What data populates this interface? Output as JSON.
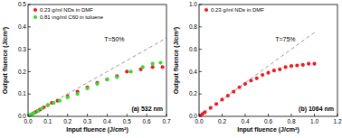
{
  "chart_data": [
    {
      "type": "scatter",
      "xlabel": "Input fluence (J/cm²)",
      "ylabel": "Output fluence (J/cm²)",
      "annotations": [
        "T=50%",
        "(a) 532 nm"
      ],
      "xlim": [
        0,
        0.7
      ],
      "ylim": [
        0,
        0.5
      ],
      "xticks": [
        {
          "value": 0,
          "label": "0.0"
        },
        0.1,
        0.2,
        0.3,
        0.4,
        0.5,
        0.6,
        0.7
      ],
      "yticks": [
        {
          "value": 0,
          "label": "0.0"
        },
        0.1,
        0.2,
        0.3,
        0.4,
        0.5
      ],
      "grid": false,
      "legend": "upper left",
      "series": [
        {
          "name": "0.23 g/ml NDs in DMF",
          "color": "#ee1c25",
          "marker": "circle",
          "x": [
            0.01,
            0.02,
            0.03,
            0.04,
            0.05,
            0.06,
            0.08,
            0.1,
            0.12,
            0.15,
            0.2,
            0.25,
            0.3,
            0.35,
            0.4,
            0.45,
            0.5,
            0.57,
            0.63,
            0.68
          ],
          "values": [
            0.005,
            0.01,
            0.015,
            0.02,
            0.025,
            0.03,
            0.04,
            0.05,
            0.06,
            0.07,
            0.09,
            0.11,
            0.13,
            0.15,
            0.165,
            0.18,
            0.2,
            0.21,
            0.22,
            0.22
          ]
        },
        {
          "name": "0.81 mg/ml C60 in toluene",
          "color": "#33dd33",
          "marker": "circle",
          "x": [
            0.01,
            0.02,
            0.03,
            0.05,
            0.07,
            0.1,
            0.13,
            0.16,
            0.2,
            0.25,
            0.3,
            0.35,
            0.4,
            0.45,
            0.52,
            0.58,
            0.63,
            0.67
          ],
          "values": [
            0.005,
            0.01,
            0.015,
            0.025,
            0.035,
            0.05,
            0.06,
            0.07,
            0.085,
            0.1,
            0.125,
            0.145,
            0.165,
            0.175,
            0.2,
            0.22,
            0.235,
            0.24
          ]
        },
        {
          "type": "line",
          "color": "#9a9a9a",
          "line_style": "dashed",
          "x": [
            0,
            0.7
          ],
          "values": [
            0,
            0.35
          ]
        }
      ]
    },
    {
      "type": "scatter",
      "xlabel": "Input fluence (J/cm²)",
      "ylabel": "Output fluence (J/cm²)",
      "annotations": [
        "T=75%",
        "(b) 1064 nm"
      ],
      "xlim": [
        0,
        1.2
      ],
      "ylim": [
        0,
        1.0
      ],
      "xticks": [
        {
          "value": 0,
          "label": "0.0"
        },
        0.2,
        0.4,
        0.6,
        0.8,
        {
          "value": 1,
          "label": "1.0"
        },
        1.2
      ],
      "yticks": [
        {
          "value": 0,
          "label": "0.0"
        },
        0.2,
        0.4,
        0.6,
        0.8,
        {
          "value": 1,
          "label": "1.0"
        }
      ],
      "grid": false,
      "legend": "upper left",
      "series": [
        {
          "name": "0.23 g/ml NDs in DMF",
          "color": "#ee1c25",
          "marker": "circle",
          "x": [
            0.01,
            0.03,
            0.05,
            0.1,
            0.15,
            0.2,
            0.25,
            0.3,
            0.35,
            0.4,
            0.45,
            0.5,
            0.55,
            0.6,
            0.65,
            0.7,
            0.75,
            0.8,
            0.85,
            0.9,
            0.95,
            1.0
          ],
          "values": [
            0.0075,
            0.022,
            0.037,
            0.075,
            0.11,
            0.15,
            0.185,
            0.22,
            0.26,
            0.29,
            0.32,
            0.34,
            0.37,
            0.39,
            0.41,
            0.42,
            0.44,
            0.45,
            0.455,
            0.46,
            0.47,
            0.47
          ]
        },
        {
          "type": "line",
          "color": "#9a9a9a",
          "line_style": "dashed",
          "x": [
            0,
            1.0
          ],
          "values": [
            0,
            0.75
          ]
        }
      ]
    }
  ]
}
